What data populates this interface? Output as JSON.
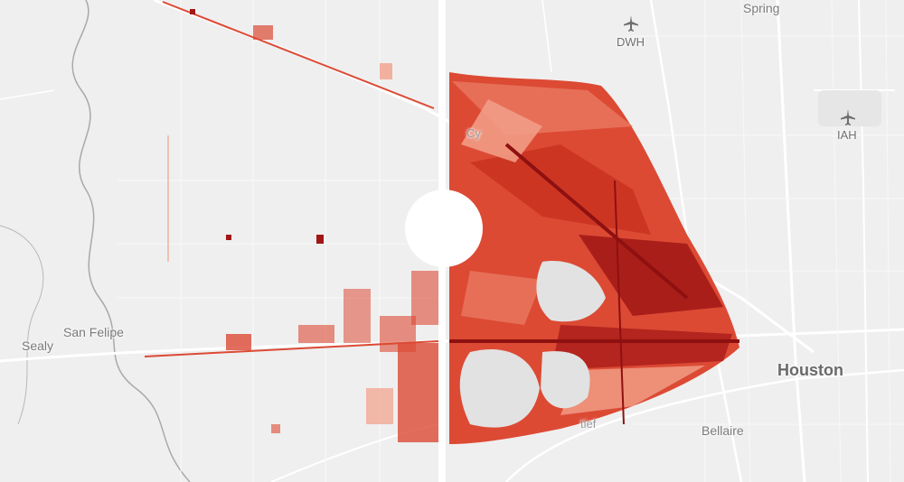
{
  "map": {
    "labels": {
      "spring": "Spring",
      "dwh": "DWH",
      "iah": "IAH",
      "cy": "Cy",
      "san_felipe": "San Felipe",
      "sealy": "Sealy",
      "houston": "Houston",
      "bellaire": "Bellaire",
      "tief": "tief"
    },
    "colors": {
      "base": "#efefef",
      "roads": "#ffffff",
      "river": "#a9a9a9",
      "heat_light": "#f2a089",
      "heat_mid": "#dc4a34",
      "heat_dark": "#a11616",
      "lake": "#e2e2e2"
    }
  },
  "compare_slider": {
    "divider_color": "#ffffff"
  }
}
